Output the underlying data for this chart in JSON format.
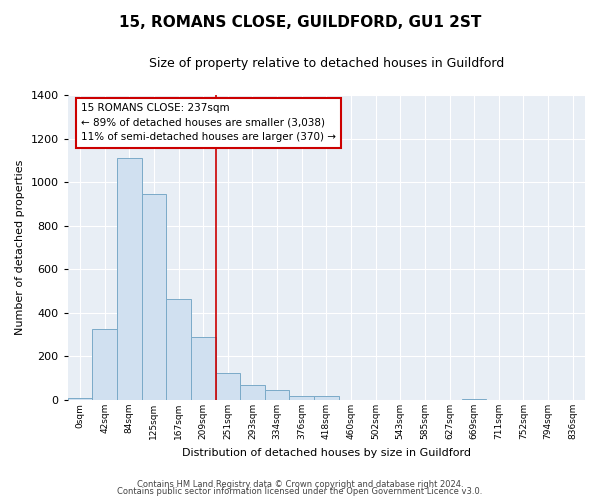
{
  "title": "15, ROMANS CLOSE, GUILDFORD, GU1 2ST",
  "subtitle": "Size of property relative to detached houses in Guildford",
  "xlabel": "Distribution of detached houses by size in Guildford",
  "ylabel": "Number of detached properties",
  "footnote1": "Contains HM Land Registry data © Crown copyright and database right 2024.",
  "footnote2": "Contains public sector information licensed under the Open Government Licence v3.0.",
  "bar_labels": [
    "0sqm",
    "42sqm",
    "84sqm",
    "125sqm",
    "167sqm",
    "209sqm",
    "251sqm",
    "293sqm",
    "334sqm",
    "376sqm",
    "418sqm",
    "460sqm",
    "502sqm",
    "543sqm",
    "585sqm",
    "627sqm",
    "669sqm",
    "711sqm",
    "752sqm",
    "794sqm",
    "836sqm"
  ],
  "bar_values": [
    10,
    325,
    1110,
    945,
    465,
    290,
    125,
    70,
    45,
    20,
    20,
    0,
    0,
    0,
    0,
    0,
    5,
    0,
    0,
    0,
    0
  ],
  "bar_color": "#d0e0f0",
  "bar_edge_color": "#7aaac8",
  "vline_x": 6,
  "vline_color": "#cc0000",
  "ylim": [
    0,
    1400
  ],
  "yticks": [
    0,
    200,
    400,
    600,
    800,
    1000,
    1200,
    1400
  ],
  "annotation_title": "15 ROMANS CLOSE: 237sqm",
  "annotation_line1": "← 89% of detached houses are smaller (3,038)",
  "annotation_line2": "11% of semi-detached houses are larger (370) →",
  "annotation_box_color": "#ffffff",
  "annotation_border_color": "#cc0000",
  "fig_bg_color": "#ffffff",
  "axes_bg_color": "#e8eef5"
}
